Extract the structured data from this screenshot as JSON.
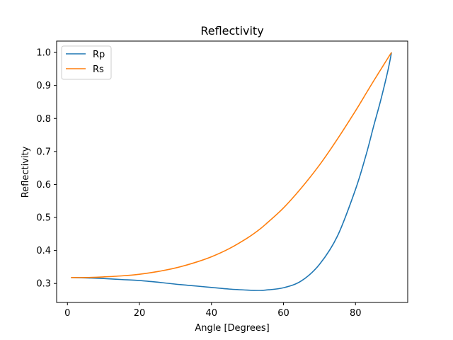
{
  "chart_data": {
    "type": "line",
    "title": "Reflectivity",
    "xlabel": "Angle [Degrees]",
    "ylabel": "Reflectivity",
    "xlim": [
      -3,
      94.5
    ],
    "ylim": [
      0.2425,
      1.0345
    ],
    "xticks": [
      0,
      20,
      40,
      60,
      80
    ],
    "yticks": [
      0.3,
      0.4,
      0.5,
      0.6,
      0.7,
      0.8,
      0.9,
      1.0
    ],
    "xtick_labels": [
      "0",
      "20",
      "40",
      "60",
      "80"
    ],
    "ytick_labels": [
      "0.3",
      "0.4",
      "0.5",
      "0.6",
      "0.7",
      "0.8",
      "0.9",
      "1.0"
    ],
    "grid": false,
    "legend": "top-left",
    "x": [
      1,
      5,
      10,
      15,
      20,
      25,
      30,
      35,
      40,
      45,
      50,
      53,
      55,
      60,
      65,
      70,
      75,
      80,
      83,
      85,
      87,
      89,
      90
    ],
    "series": [
      {
        "name": "Rp",
        "color": "#1f77b4",
        "values": [
          0.318,
          0.317,
          0.315,
          0.312,
          0.309,
          0.304,
          0.298,
          0.293,
          0.288,
          0.283,
          0.28,
          0.279,
          0.28,
          0.287,
          0.308,
          0.358,
          0.444,
          0.585,
          0.692,
          0.775,
          0.855,
          0.945,
          1.0
        ]
      },
      {
        "name": "Rs",
        "color": "#ff7f0e",
        "values": [
          0.318,
          0.318,
          0.32,
          0.323,
          0.328,
          0.336,
          0.347,
          0.362,
          0.381,
          0.406,
          0.438,
          0.461,
          0.479,
          0.529,
          0.59,
          0.659,
          0.738,
          0.823,
          0.877,
          0.913,
          0.948,
          0.983,
          1.0
        ]
      }
    ]
  }
}
